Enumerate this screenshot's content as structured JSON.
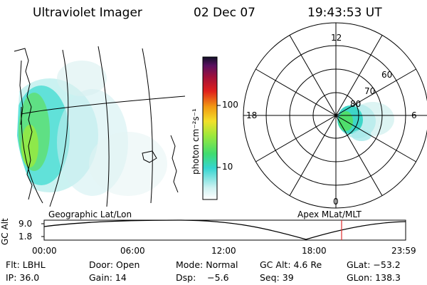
{
  "header": {
    "instrument": "Ultraviolet Imager",
    "date": "02 Dec 07",
    "time": "19:43:53 UT"
  },
  "colorbar": {
    "label": "photon cm⁻²s⁻¹",
    "ticks": [
      "100",
      "10"
    ]
  },
  "polar_plot": {
    "mlt_labels": {
      "top": "12",
      "left": "18",
      "right": "6",
      "bottom": "0"
    },
    "lat_labels": [
      "60",
      "70",
      "80"
    ]
  },
  "panel_labels": {
    "left": "Geographic Lat/Lon",
    "right": "Apex MLat/MLT"
  },
  "altitude_plot": {
    "ylabel": "GC Alt",
    "y_ticks": [
      "9.0",
      "1.8"
    ],
    "x_ticks": [
      "00:00",
      "06:00",
      "12:00",
      "18:00",
      "23:59"
    ],
    "current_time_marker_color": "#e03030"
  },
  "info": {
    "row1": [
      "Flt: LBHL",
      "Door: Open",
      "Mode: Normal",
      "GC Alt: 4.6 Re",
      "GLat: −53.2"
    ],
    "row2": [
      "IP: 36.0",
      "Gain: 14",
      "Dsp:    −5.6",
      "Seq: 39",
      "GLon: 138.3"
    ]
  }
}
